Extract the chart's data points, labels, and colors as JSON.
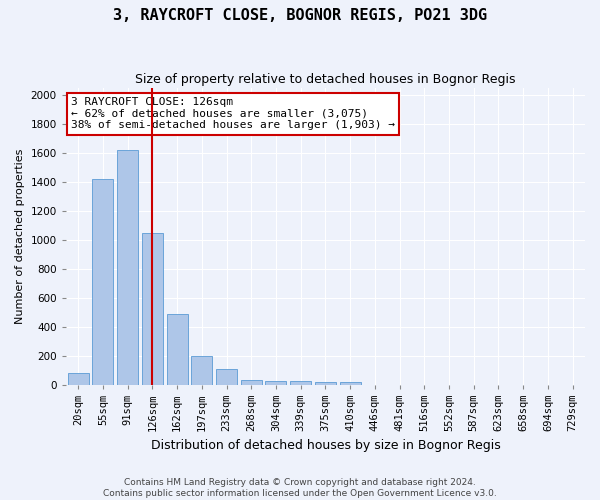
{
  "title_line1": "3, RAYCROFT CLOSE, BOGNOR REGIS, PO21 3DG",
  "title_line2": "Size of property relative to detached houses in Bognor Regis",
  "xlabel": "Distribution of detached houses by size in Bognor Regis",
  "ylabel": "Number of detached properties",
  "categories": [
    "20sqm",
    "55sqm",
    "91sqm",
    "126sqm",
    "162sqm",
    "197sqm",
    "233sqm",
    "268sqm",
    "304sqm",
    "339sqm",
    "375sqm",
    "410sqm",
    "446sqm",
    "481sqm",
    "516sqm",
    "552sqm",
    "587sqm",
    "623sqm",
    "658sqm",
    "694sqm",
    "729sqm"
  ],
  "values": [
    80,
    1420,
    1620,
    1050,
    490,
    200,
    105,
    35,
    25,
    25,
    20,
    20,
    0,
    0,
    0,
    0,
    0,
    0,
    0,
    0,
    0
  ],
  "bar_color": "#aec6e8",
  "bar_edgecolor": "#5b9bd5",
  "highlight_index": 3,
  "highlight_line_color": "#cc0000",
  "ylim": [
    0,
    2050
  ],
  "yticks": [
    0,
    200,
    400,
    600,
    800,
    1000,
    1200,
    1400,
    1600,
    1800,
    2000
  ],
  "annotation_box_text": "3 RAYCROFT CLOSE: 126sqm\n← 62% of detached houses are smaller (3,075)\n38% of semi-detached houses are larger (1,903) →",
  "annotation_box_color": "#cc0000",
  "footer_line1": "Contains HM Land Registry data © Crown copyright and database right 2024.",
  "footer_line2": "Contains public sector information licensed under the Open Government Licence v3.0.",
  "bg_color": "#eef2fb",
  "plot_bg_color": "#eef2fb",
  "grid_color": "#ffffff",
  "title1_fontsize": 11,
  "title2_fontsize": 9,
  "ylabel_fontsize": 8,
  "xlabel_fontsize": 9,
  "tick_fontsize": 7.5,
  "annotation_fontsize": 8,
  "footer_fontsize": 6.5
}
